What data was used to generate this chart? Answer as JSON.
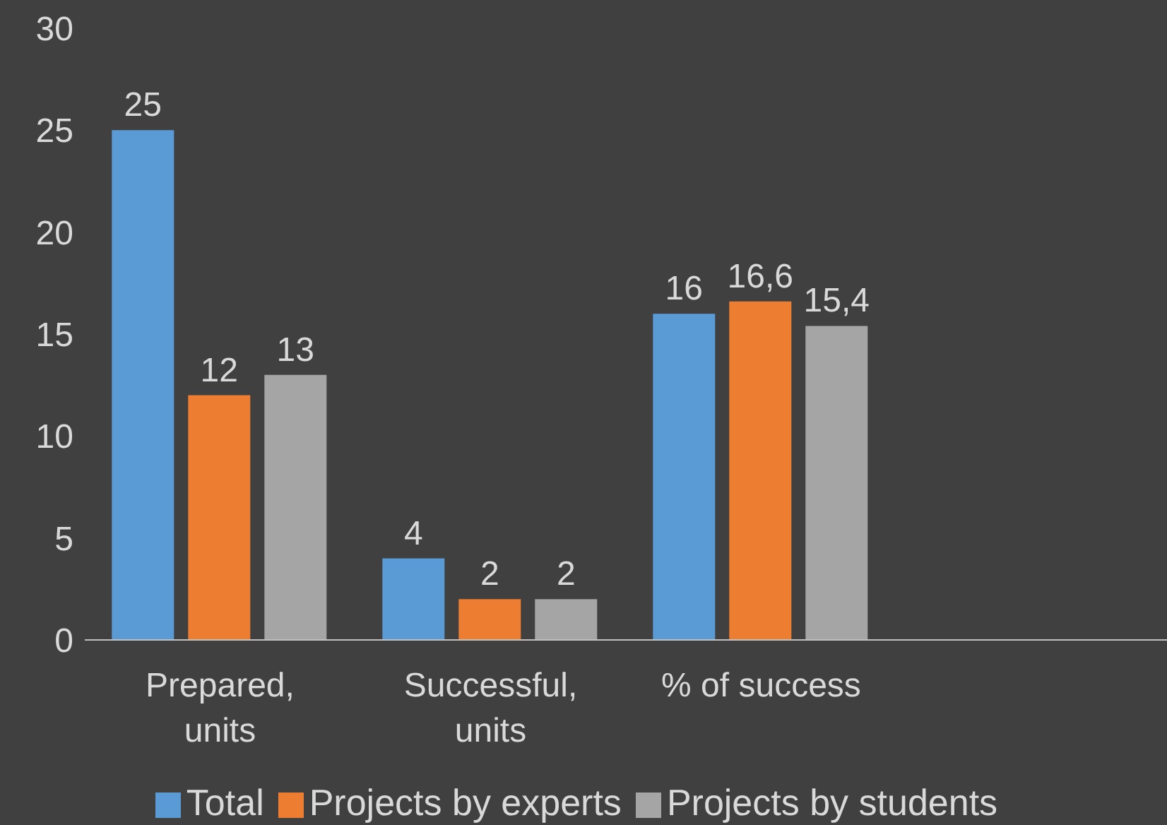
{
  "chart_data": {
    "type": "bar",
    "categories": [
      "Prepared, units",
      "Successful, units",
      "% of success",
      null
    ],
    "series": [
      {
        "name": "Total",
        "color": "#5b9bd5",
        "values": [
          25,
          4,
          16,
          null
        ],
        "value_labels": [
          "25",
          "4",
          "16",
          null
        ]
      },
      {
        "name": "Projects by experts",
        "color": "#ed7d31",
        "values": [
          12,
          2,
          16.6,
          null
        ],
        "value_labels": [
          "12",
          "2",
          "16,6",
          null
        ]
      },
      {
        "name": "Projects by students",
        "color": "#a5a5a5",
        "values": [
          13,
          2,
          15.4,
          null
        ],
        "value_labels": [
          "13",
          "2",
          "15,4",
          null
        ]
      }
    ],
    "ylim": [
      0,
      30
    ],
    "yticks": [
      0,
      5,
      10,
      15,
      20,
      25,
      30
    ],
    "grid": false,
    "legend": "bottom"
  }
}
